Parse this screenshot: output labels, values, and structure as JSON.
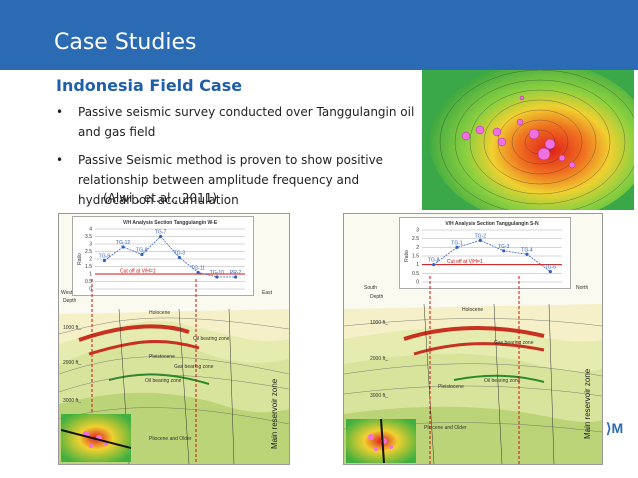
{
  "header": {
    "title": "Case Studies",
    "color": "#2a6bb3"
  },
  "subtitle": "Indonesia Field Case",
  "bullets": [
    "Passive seismic survey conducted over Tanggulangin oil and gas field",
    "Passive Seismic method is proven to show positive relationship between amplitude frequency and hydrocarbon accumulation"
  ],
  "citation": "(Alwi , et.al., 2011)",
  "left_figure": {
    "chart_title": "V/H Analysis Section Tanggulangin W-E",
    "cutoff_label": "Cut off at V/H=1",
    "ylabel": "Ratio",
    "west": "West",
    "east": "East",
    "depth": "Depth",
    "holocene": "Holocene",
    "pleistocene": "Pleistocene",
    "pliocene": "Pliocene and Older",
    "reservoir": "Main reservoir zone",
    "depth_ticks": [
      "1000 ft_",
      "2000 ft_",
      "3000 ft_"
    ],
    "zone_labels": [
      "Oil bearing zone",
      "Gas bearing zone",
      "Oil bearing zone"
    ]
  },
  "right_figure": {
    "chart_title": "V/H Analysis Section Tanggulangin S-N",
    "cutoff_label": "Cut off at V/H=1",
    "ylabel": "Ratio",
    "south": "South",
    "north": "North",
    "depth": "Depth",
    "holocene": "Holocene",
    "pleistocene": "Pleistocene",
    "pliocene": "Pliocene and Older",
    "reservoir": "Main reservoir zone",
    "depth_ticks": [
      "1000 ft_",
      "2000 ft_",
      "3000 ft_"
    ],
    "zone_labels": [
      "Gas bearing zone",
      "Oil bearing zone"
    ]
  },
  "chart_data": [
    {
      "type": "line",
      "title": "V/H Analysis Section Tanggulangin W-E",
      "ylabel": "Ratio",
      "ylim": [
        0,
        4
      ],
      "yticks": [
        "0",
        "0.5",
        "1",
        "1.5",
        "2",
        "2.5",
        "3",
        "3.5",
        "4"
      ],
      "categories": [
        "TG-9",
        "TG-12",
        "TG-8",
        "TG-7",
        "TG-3",
        "TG-11",
        "TG-10",
        "PR-2"
      ],
      "values": [
        1.9,
        2.8,
        2.3,
        3.5,
        2.1,
        1.1,
        0.8,
        0.8
      ],
      "cutoff": 1
    },
    {
      "type": "line",
      "title": "V/H Analysis Section Tanggulangin S-N",
      "ylabel": "Ratio",
      "ylim": [
        0,
        3
      ],
      "yticks": [
        "0",
        "0.5",
        "1",
        "1.5",
        "2",
        "2.5",
        "3"
      ],
      "categories": [
        "TG-8",
        "TG-1",
        "TG-2",
        "TG-3",
        "TG-4",
        "TG-6"
      ],
      "values": [
        1.0,
        2.0,
        2.4,
        1.8,
        1.6,
        0.6
      ],
      "cutoff": 1
    }
  ],
  "colors": {
    "accent": "#2a6bb3",
    "cutoff": "#d01010",
    "series": "#3060c0"
  },
  "logo": "⟩M"
}
